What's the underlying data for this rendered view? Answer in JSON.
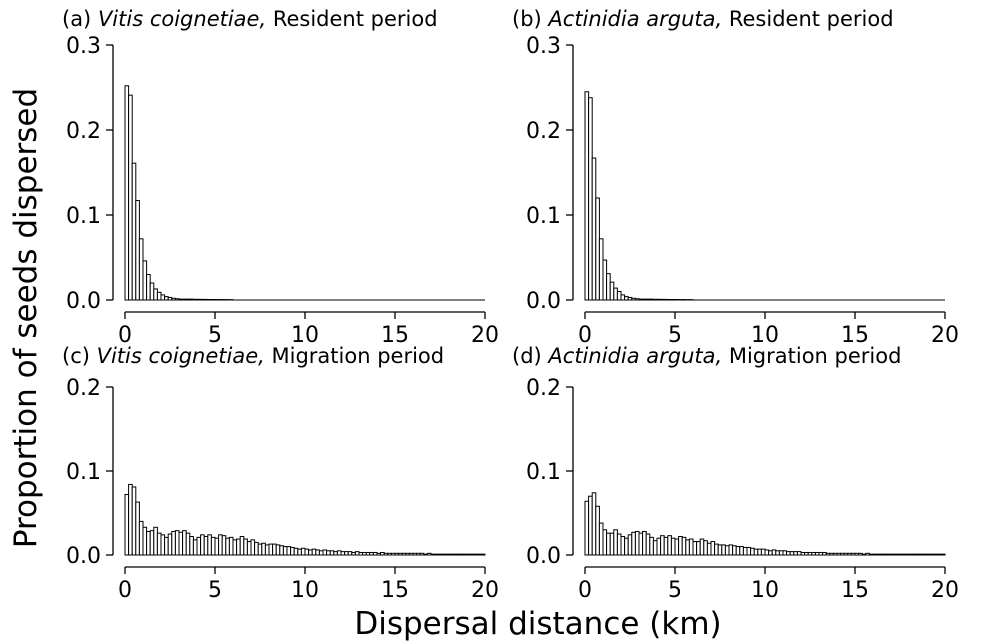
{
  "figure": {
    "ylabel": "Proportion of seeds dispersed",
    "xlabel": "Dispersal distance (km)"
  },
  "chart_data": [
    {
      "type": "bar",
      "panel": "a",
      "title_prefix": "(a) ",
      "title_species": "Vitis coignetiae,",
      "title_suffix": " Resident period",
      "xlim": [
        0,
        20
      ],
      "ylim": [
        0,
        0.3
      ],
      "xticks": [
        0,
        5,
        10,
        15,
        20
      ],
      "yticks": [
        0,
        0.1,
        0.2,
        0.3
      ],
      "xtick_labels": [
        "0",
        "5",
        "10",
        "15",
        "20"
      ],
      "ytick_labels": [
        "0.0",
        "0.1",
        "0.2",
        "0.3"
      ],
      "bin_width_km": 0.2,
      "values": [
        0.252,
        0.241,
        0.161,
        0.117,
        0.072,
        0.046,
        0.03,
        0.02,
        0.013,
        0.009,
        0.006,
        0.004,
        0.003,
        0.002,
        0.0015,
        0.001,
        0.001,
        0.001,
        0.001,
        0.0008,
        0.0008,
        0.0007,
        0.0007,
        0.0006,
        0.0006,
        0.0005,
        0.0005,
        0.0005,
        0.0004,
        0.0004
      ]
    },
    {
      "type": "bar",
      "panel": "b",
      "title_prefix": "(b) ",
      "title_species": "Actinidia arguta,",
      "title_suffix": " Resident period",
      "xlim": [
        0,
        20
      ],
      "ylim": [
        0,
        0.3
      ],
      "xticks": [
        0,
        5,
        10,
        15,
        20
      ],
      "yticks": [
        0,
        0.1,
        0.2,
        0.3
      ],
      "xtick_labels": [
        "0",
        "5",
        "10",
        "15",
        "20"
      ],
      "ytick_labels": [
        "0.0",
        "0.1",
        "0.2",
        "0.3"
      ],
      "bin_width_km": 0.2,
      "values": [
        0.245,
        0.238,
        0.167,
        0.12,
        0.072,
        0.047,
        0.031,
        0.021,
        0.014,
        0.01,
        0.006,
        0.004,
        0.003,
        0.002,
        0.0015,
        0.001,
        0.001,
        0.001,
        0.001,
        0.0008,
        0.0008,
        0.0007,
        0.0007,
        0.0006,
        0.0006,
        0.0005,
        0.0005,
        0.0005,
        0.0004,
        0.0004
      ]
    },
    {
      "type": "bar",
      "panel": "c",
      "title_prefix": "(c) ",
      "title_species": "Vitis coignetiae,",
      "title_suffix": " Migration period",
      "xlim": [
        0,
        20
      ],
      "ylim": [
        0,
        0.2
      ],
      "xticks": [
        0,
        5,
        10,
        15,
        20
      ],
      "yticks": [
        0,
        0.1,
        0.2
      ],
      "xtick_labels": [
        "0",
        "5",
        "10",
        "15",
        "20"
      ],
      "ytick_labels": [
        "0.0",
        "0.1",
        "0.2"
      ],
      "bin_width_km": 0.2,
      "values": [
        0.072,
        0.084,
        0.081,
        0.063,
        0.04,
        0.033,
        0.028,
        0.029,
        0.033,
        0.026,
        0.024,
        0.021,
        0.025,
        0.028,
        0.029,
        0.027,
        0.029,
        0.026,
        0.022,
        0.018,
        0.021,
        0.024,
        0.022,
        0.024,
        0.021,
        0.02,
        0.024,
        0.023,
        0.02,
        0.021,
        0.018,
        0.019,
        0.022,
        0.019,
        0.016,
        0.018,
        0.015,
        0.013,
        0.014,
        0.012,
        0.013,
        0.013,
        0.012,
        0.011,
        0.01,
        0.01,
        0.009,
        0.008,
        0.007,
        0.008,
        0.007,
        0.006,
        0.007,
        0.006,
        0.005,
        0.006,
        0.005,
        0.005,
        0.004,
        0.005,
        0.004,
        0.004,
        0.004,
        0.003,
        0.004,
        0.003,
        0.003,
        0.003,
        0.003,
        0.003,
        0.002,
        0.003,
        0.002,
        0.002,
        0.002,
        0.002,
        0.002,
        0.002,
        0.002,
        0.002,
        0.002,
        0.002,
        0.002,
        0.001,
        0.002,
        0.001,
        0.001,
        0.001,
        0.001,
        0.001,
        0.001,
        0.001,
        0.001,
        0.001,
        0.001,
        0.001,
        0.001,
        0.001,
        0.001,
        0.001
      ]
    },
    {
      "type": "bar",
      "panel": "d",
      "title_prefix": "(d) ",
      "title_species": "Actinidia arguta,",
      "title_suffix": " Migration period",
      "xlim": [
        0,
        20
      ],
      "ylim": [
        0,
        0.2
      ],
      "xticks": [
        0,
        5,
        10,
        15,
        20
      ],
      "yticks": [
        0,
        0.1,
        0.2
      ],
      "xtick_labels": [
        "0",
        "5",
        "10",
        "15",
        "20"
      ],
      "ytick_labels": [
        "0.0",
        "0.1",
        "0.2"
      ],
      "bin_width_km": 0.2,
      "values": [
        0.064,
        0.07,
        0.074,
        0.058,
        0.038,
        0.03,
        0.026,
        0.026,
        0.03,
        0.025,
        0.022,
        0.02,
        0.024,
        0.027,
        0.028,
        0.026,
        0.028,
        0.025,
        0.021,
        0.017,
        0.02,
        0.023,
        0.021,
        0.023,
        0.02,
        0.019,
        0.022,
        0.021,
        0.018,
        0.019,
        0.016,
        0.016,
        0.019,
        0.017,
        0.014,
        0.016,
        0.013,
        0.012,
        0.012,
        0.011,
        0.012,
        0.011,
        0.01,
        0.01,
        0.009,
        0.009,
        0.008,
        0.007,
        0.007,
        0.007,
        0.006,
        0.005,
        0.006,
        0.005,
        0.005,
        0.005,
        0.004,
        0.004,
        0.004,
        0.004,
        0.003,
        0.003,
        0.003,
        0.003,
        0.003,
        0.003,
        0.003,
        0.002,
        0.002,
        0.002,
        0.002,
        0.002,
        0.002,
        0.002,
        0.002,
        0.002,
        0.002,
        0.001,
        0.002,
        0.001,
        0.001,
        0.001,
        0.001,
        0.001,
        0.001,
        0.001,
        0.001,
        0.001,
        0.001,
        0.001,
        0.001,
        0.001,
        0.001,
        0.001,
        0.001,
        0.001,
        0.001,
        0.001,
        0.001,
        0.001
      ]
    }
  ]
}
